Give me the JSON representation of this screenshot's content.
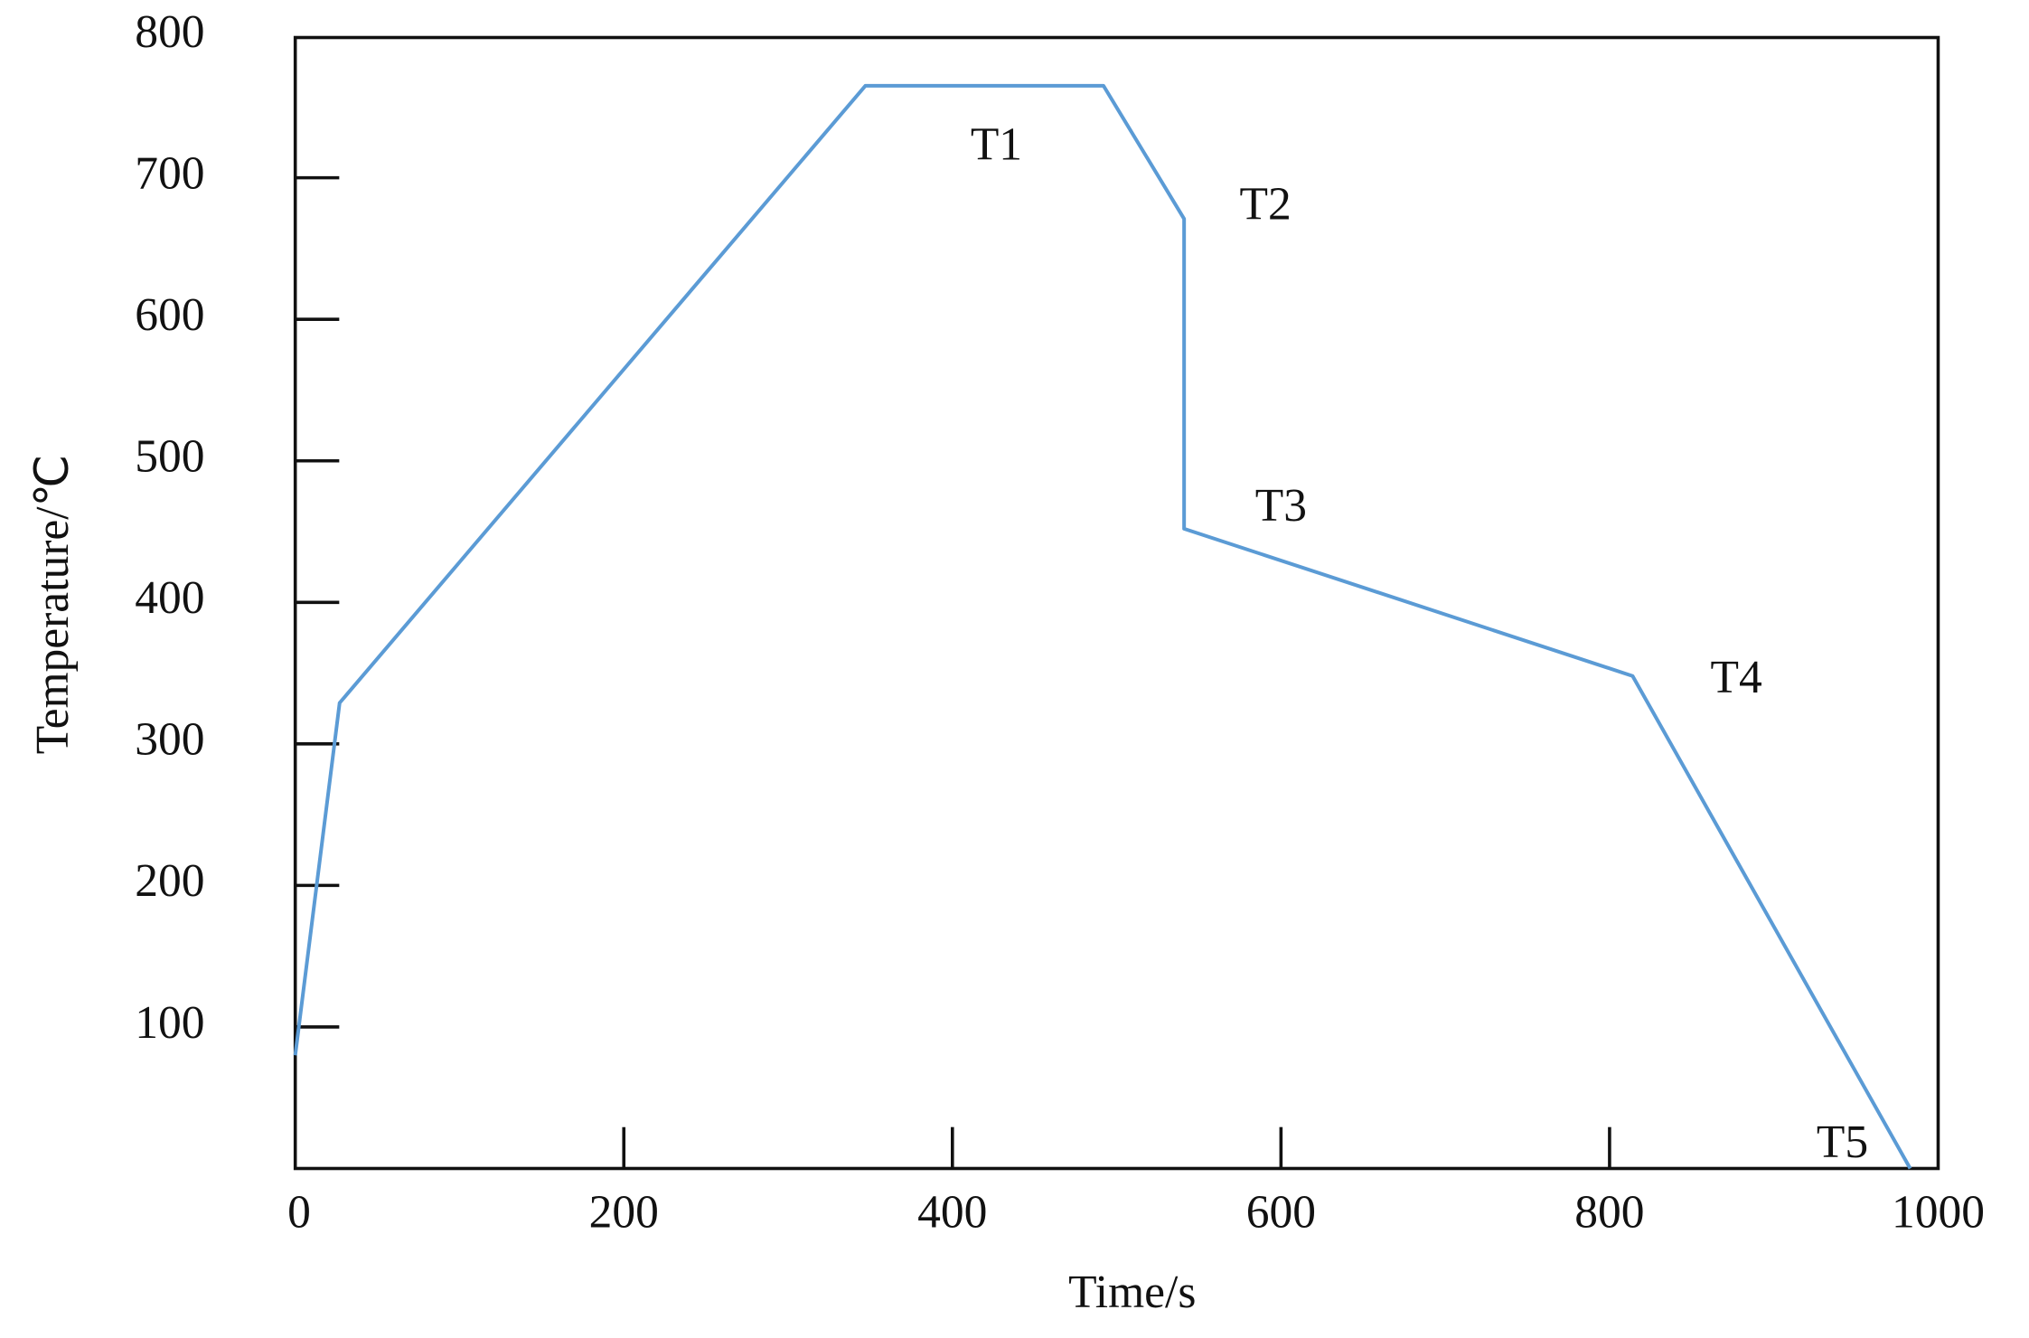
{
  "chart_data": {
    "type": "line",
    "x_label": "Time/s",
    "y_label": "Temperature/℃",
    "x": [
      0,
      27,
      347,
      492,
      541,
      541,
      814,
      983
    ],
    "values": [
      80,
      329,
      765,
      765,
      671,
      452,
      348,
      0
    ],
    "color": "#5b9bd5",
    "xlim": [
      0,
      1000
    ],
    "ylim": [
      0,
      800
    ],
    "xticks": [
      0,
      200,
      400,
      600,
      800,
      1000
    ],
    "yticks": [
      100,
      200,
      300,
      400,
      500,
      600,
      700,
      800
    ],
    "annotations": [
      "T1",
      "T2",
      "T3",
      "T4",
      "T5"
    ],
    "grid": false
  }
}
